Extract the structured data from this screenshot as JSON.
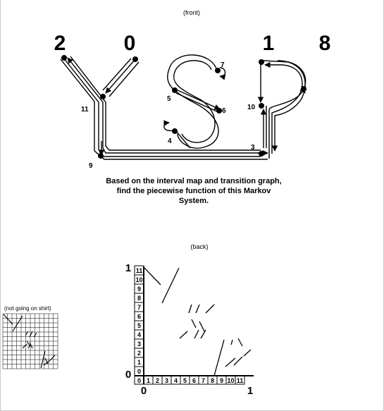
{
  "front_label": "(front)",
  "back_label": "(back)",
  "not_on_shirt_label": "(not going on shirt)",
  "year_digits": [
    "2",
    "0",
    "1",
    "8"
  ],
  "question": "Based on the interval map and transition graph, find the piecewise function of this Markov System.",
  "graph": {
    "letters": [
      "Y",
      "S",
      "P"
    ],
    "node_labels": [
      "3",
      "4",
      "5",
      "6",
      "7",
      "9",
      "10",
      "11"
    ]
  },
  "interval_map": {
    "tick_labels": [
      "0",
      "1",
      "2",
      "3",
      "4",
      "5",
      "6",
      "7",
      "8",
      "9",
      "10",
      "11"
    ],
    "x_min_label": "0",
    "x_max_label": "1",
    "y_min_label": "0",
    "y_max_label": "1"
  },
  "colors": {
    "ink": "#000000",
    "grid": "#000000",
    "background": "#ffffff"
  }
}
